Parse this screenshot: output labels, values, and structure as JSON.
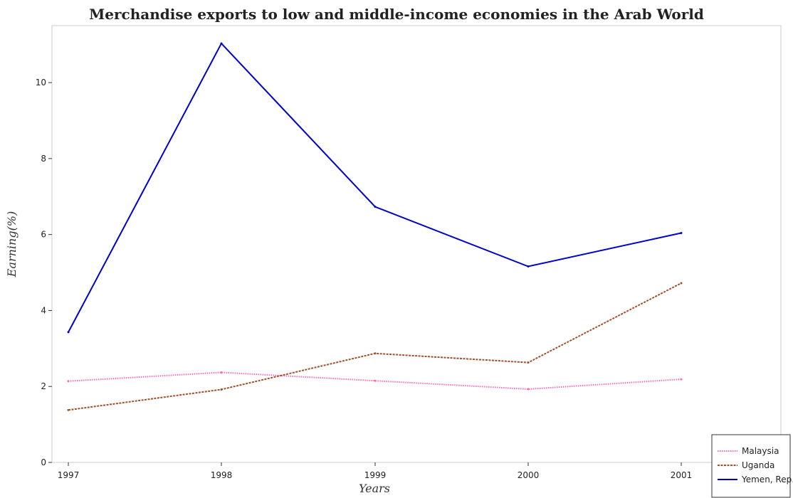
{
  "chart_data": {
    "type": "line",
    "title": "Merchandise exports to low and middle-income economies in the Arab World",
    "xlabel": "Years",
    "ylabel": "Earning(%)",
    "categories": [
      "1997",
      "1998",
      "1999",
      "2000",
      "2001"
    ],
    "ylim": [
      0,
      11.5
    ],
    "yticks": [
      "0",
      "2",
      "4",
      "6",
      "8",
      "10"
    ],
    "legend_position": "bottom-right",
    "grid": false,
    "series": [
      {
        "name": "Malaysia",
        "color": "#ff69b4",
        "values": [
          2.14,
          2.37,
          2.15,
          1.93,
          2.19
        ]
      },
      {
        "name": "Uganda",
        "color": "#a0522d",
        "values": [
          1.38,
          1.92,
          2.87,
          2.63,
          4.72
        ]
      },
      {
        "name": "Yemen, Rep.",
        "color": "#0000cd",
        "values": [
          3.43,
          11.03,
          6.73,
          5.16,
          6.04
        ]
      }
    ]
  }
}
